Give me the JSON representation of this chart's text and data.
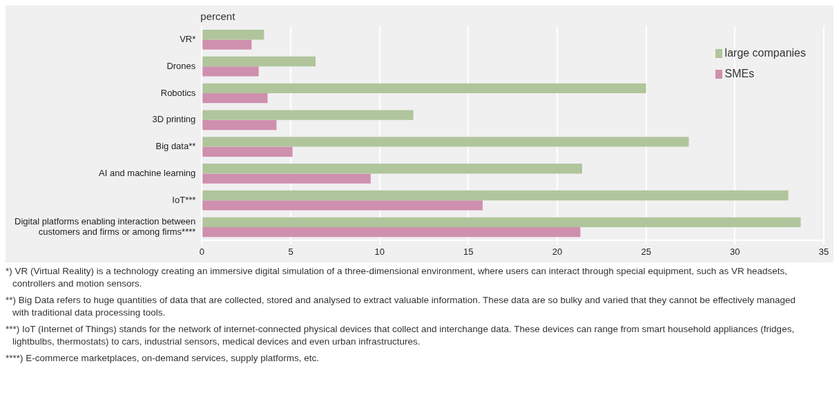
{
  "chart_data": {
    "type": "bar",
    "orientation": "horizontal",
    "xlabel": "percent",
    "categories": [
      "VR*",
      "Drones",
      "Robotics",
      "3D printing",
      "Big data**",
      "AI and machine learning",
      "IoT***",
      "Digital platforms enabling interaction between customers and firms or among firms****"
    ],
    "series": [
      {
        "name": "large companies",
        "color": "#b0c59c",
        "values": [
          3.5,
          6.4,
          25.0,
          11.9,
          27.4,
          21.4,
          33.0,
          33.7
        ]
      },
      {
        "name": "SMEs",
        "color": "#cf8fae",
        "values": [
          2.8,
          3.2,
          3.7,
          4.2,
          5.1,
          9.5,
          15.8,
          21.3
        ]
      }
    ],
    "xlim": [
      0,
      35
    ],
    "xticks": [
      0,
      5,
      10,
      15,
      20,
      25,
      30,
      35
    ],
    "grid": "x",
    "legend": "top right",
    "annotations": [
      "*) VR (Virtual Reality) is a technology creating an immersive digital simulation of a three-dimensional environment, where users can interact through special equipment, such as VR headsets, controllers and motion sensors.",
      "**) Big Data refers to huge quantities of data that are collected, stored and analysed to extract valuable information. These data are so bulky and varied that they cannot be effectively managed with traditional data processing tools.",
      "***) IoT (Internet of Things) stands for the network of internet-connected physical devices that collect and interchange data. These devices can range from smart household appliances (fridges, lightbulbs, thermostats) to cars, industrial sensors, medical devices and even urban infrastructures.",
      "****) E-commerce marketplaces, on-demand services, supply platforms, etc."
    ]
  }
}
